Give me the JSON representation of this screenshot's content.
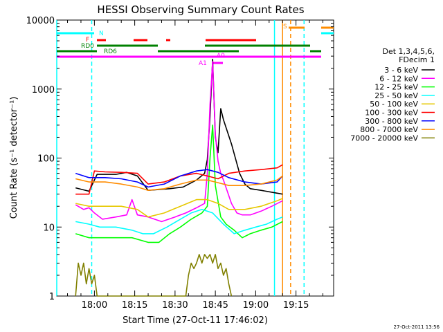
{
  "chart_data": {
    "type": "line",
    "title": "HESSI Observing Summary Count Rates",
    "ylabel": "Count Rate (s⁻¹ detector⁻¹)",
    "xlabel": "Start Time (27-Oct-11 17:46:02)",
    "y_scale": "log",
    "ylim": [
      1,
      10000
    ],
    "xlim": [
      "17:46",
      "19:29"
    ],
    "x_ticks": [
      "18:00",
      "18:15",
      "18:30",
      "18:45",
      "19:00",
      "19:15"
    ],
    "y_ticks": [
      "1",
      "10",
      "100",
      "1000",
      "10000"
    ],
    "timestamp": "27-Oct-2011 13:56",
    "legend": {
      "placement": "right",
      "header": [
        "Det 1,3,4,5,6,",
        "FDecim 1"
      ],
      "entries": [
        {
          "label": "3 - 6 keV",
          "color": "#000000"
        },
        {
          "label": "6 - 12 keV",
          "color": "#ff00ff"
        },
        {
          "label": "12 - 25 keV",
          "color": "#00ff00"
        },
        {
          "label": "25 - 50 keV",
          "color": "#00ffff"
        },
        {
          "label": "50 - 100 keV",
          "color": "#e6c800"
        },
        {
          "label": "100 - 300 keV",
          "color": "#ff0000"
        },
        {
          "label": "300 - 800 keV",
          "color": "#0000ff"
        },
        {
          "label": "800 - 7000 keV",
          "color": "#ff8c00"
        },
        {
          "label": "7000 - 20000 keV",
          "color": "#808000"
        }
      ]
    },
    "flags": [
      {
        "label": "N",
        "color": "#00ffff"
      },
      {
        "label": "F",
        "color": "#ff0000"
      },
      {
        "label": "RD0",
        "color": "#008000"
      },
      {
        "label": "RD6",
        "color": "#008000"
      },
      {
        "label": "A1",
        "color": "#ff00ff"
      },
      {
        "label": "A0",
        "color": "#ff00ff"
      },
      {
        "label": "S",
        "color": "#ff8c00"
      }
    ],
    "vlines": [
      {
        "time": "17:46",
        "color": "#00ffff",
        "style": "solid"
      },
      {
        "time": "17:59",
        "color": "#00ffff",
        "style": "dashed"
      },
      {
        "time": "19:07",
        "color": "#00ffff",
        "style": "solid"
      },
      {
        "time": "19:10",
        "color": "#ff8c00",
        "style": "solid"
      },
      {
        "time": "19:13",
        "color": "#ff8c00",
        "style": "dashed"
      },
      {
        "time": "19:18",
        "color": "#00ffff",
        "style": "dashed"
      }
    ],
    "series": [
      {
        "name": "3 - 6 keV",
        "color": "#000000",
        "x": [
          "17:53",
          "17:58",
          "18:01",
          "18:08",
          "18:12",
          "18:16",
          "18:20",
          "18:28",
          "18:33",
          "18:38",
          "18:41",
          "18:42",
          "18:43",
          "18:44",
          "18:45",
          "18:46",
          "18:47",
          "18:48",
          "18:51",
          "18:54",
          "18:56",
          "18:58",
          "19:02",
          "19:06",
          "19:10"
        ],
        "y": [
          37,
          33,
          58,
          58,
          62,
          55,
          34,
          36,
          38,
          48,
          60,
          95,
          400,
          2700,
          200,
          120,
          520,
          360,
          160,
          60,
          42,
          36,
          34,
          32,
          30
        ]
      },
      {
        "name": "6 - 12 keV",
        "color": "#ff00ff",
        "x": [
          "17:53",
          "17:56",
          "17:58",
          "18:00",
          "18:03",
          "18:08",
          "18:12",
          "18:14",
          "18:16",
          "18:20",
          "18:25",
          "18:30",
          "18:34",
          "18:38",
          "18:41",
          "18:42",
          "18:43",
          "18:44",
          "18:45",
          "18:46",
          "18:47",
          "18:48",
          "18:51",
          "18:53",
          "18:55",
          "18:58",
          "19:02",
          "19:06",
          "19:10"
        ],
        "y": [
          21,
          18,
          19,
          16,
          13,
          14,
          15,
          25,
          15,
          14,
          12,
          14,
          16,
          19,
          22,
          60,
          600,
          2500,
          220,
          90,
          60,
          48,
          22,
          16,
          15,
          15,
          17,
          20,
          24
        ]
      },
      {
        "name": "12 - 25 keV",
        "color": "#00ff00",
        "x": [
          "17:53",
          "17:58",
          "18:02",
          "18:08",
          "18:14",
          "18:20",
          "18:24",
          "18:28",
          "18:32",
          "18:36",
          "18:40",
          "18:42",
          "18:43",
          "18:44",
          "18:45",
          "18:47",
          "18:49",
          "18:52",
          "18:55",
          "18:58",
          "19:02",
          "19:06",
          "19:10"
        ],
        "y": [
          8,
          7,
          7,
          7,
          7,
          6,
          6,
          8,
          10,
          13,
          16,
          20,
          100,
          300,
          40,
          14,
          11,
          9,
          7,
          8,
          9,
          10,
          12
        ]
      },
      {
        "name": "25 - 50 keV",
        "color": "#00ffff",
        "x": [
          "17:53",
          "17:58",
          "18:02",
          "18:08",
          "18:14",
          "18:18",
          "18:22",
          "18:27",
          "18:32",
          "18:36",
          "18:40",
          "18:44",
          "18:48",
          "18:52",
          "18:56",
          "19:00",
          "19:04",
          "19:08",
          "19:10"
        ],
        "y": [
          12,
          11,
          10,
          10,
          9,
          8,
          8,
          10,
          13,
          16,
          18,
          16,
          11,
          8,
          9,
          10,
          11,
          13,
          14
        ]
      },
      {
        "name": "50 - 100 keV",
        "color": "#e6c800",
        "x": [
          "17:53",
          "17:58",
          "18:04",
          "18:10",
          "18:16",
          "18:20",
          "18:26",
          "18:32",
          "18:38",
          "18:42",
          "18:46",
          "18:50",
          "18:56",
          "19:02",
          "19:08",
          "19:10"
        ],
        "y": [
          22,
          20,
          20,
          20,
          18,
          14,
          16,
          20,
          25,
          25,
          22,
          18,
          18,
          20,
          24,
          26
        ]
      },
      {
        "name": "100 - 300 keV",
        "color": "#ff0000",
        "x": [
          "17:53",
          "17:58",
          "18:00",
          "18:04",
          "18:10",
          "18:16",
          "18:20",
          "18:26",
          "18:32",
          "18:38",
          "18:42",
          "18:46",
          "18:50",
          "18:56",
          "19:02",
          "19:08",
          "19:10"
        ],
        "y": [
          30,
          30,
          65,
          63,
          62,
          60,
          42,
          45,
          55,
          60,
          55,
          50,
          60,
          65,
          68,
          72,
          80
        ]
      },
      {
        "name": "300 - 800 keV",
        "color": "#0000ff",
        "x": [
          "17:53",
          "17:58",
          "18:04",
          "18:10",
          "18:16",
          "18:20",
          "18:26",
          "18:32",
          "18:38",
          "18:42",
          "18:46",
          "18:50",
          "18:56",
          "19:02",
          "19:08",
          "19:10"
        ],
        "y": [
          60,
          52,
          52,
          50,
          45,
          38,
          42,
          55,
          65,
          68,
          62,
          52,
          45,
          42,
          45,
          55
        ]
      },
      {
        "name": "800 - 7000 keV",
        "color": "#ff8c00",
        "x": [
          "17:53",
          "17:58",
          "18:04",
          "18:10",
          "18:16",
          "18:20",
          "18:26",
          "18:32",
          "18:38",
          "18:42",
          "18:46",
          "18:50",
          "18:56",
          "19:02",
          "19:08",
          "19:10"
        ],
        "y": [
          50,
          45,
          45,
          42,
          38,
          34,
          36,
          42,
          48,
          48,
          44,
          40,
          40,
          42,
          48,
          55
        ]
      },
      {
        "name": "7000 - 20000 keV",
        "color": "#808000",
        "x": [
          "17:53",
          "17:54",
          "17:55",
          "17:56",
          "17:57",
          "17:58",
          "17:59",
          "18:00",
          "18:01",
          "18:34",
          "18:35",
          "18:36",
          "18:37",
          "18:38",
          "18:39",
          "18:40",
          "18:41",
          "18:42",
          "18:43",
          "18:44",
          "18:45",
          "18:46",
          "18:47",
          "18:48",
          "18:49",
          "18:50",
          "18:51"
        ],
        "y": [
          1,
          3,
          2,
          3,
          1.5,
          2.5,
          1.5,
          2,
          1,
          1,
          2,
          3,
          2.5,
          3,
          4,
          3,
          4,
          3.5,
          4,
          3,
          4,
          2.5,
          3,
          2,
          2.5,
          1.5,
          1
        ]
      }
    ]
  }
}
